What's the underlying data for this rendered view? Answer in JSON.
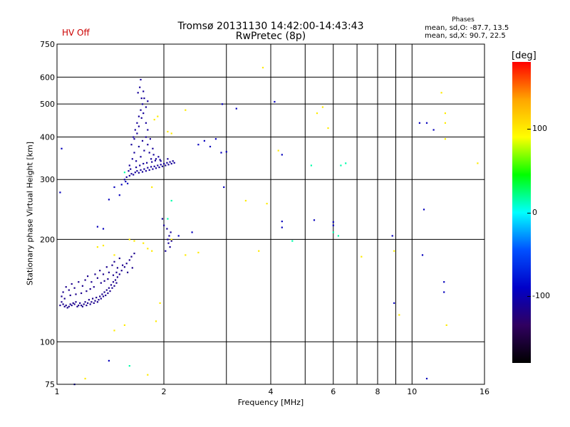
{
  "chart_data": {
    "type": "scatter",
    "title": "Tromsø 20131130 14:42:00-14:43:43",
    "subtitle": "RwPretec (8p)",
    "status_label": "HV Off",
    "xlabel": "Frequency [MHz]",
    "ylabel": "Stationary phase Virtual Height [km]",
    "x_scale": "log",
    "y_scale": "log",
    "xlim": [
      1,
      16
    ],
    "ylim": [
      75,
      750
    ],
    "x_ticks": [
      1,
      2,
      4,
      6,
      8,
      10,
      16
    ],
    "x_tick_labels": [
      "1",
      "2",
      "4",
      "6",
      "8",
      "10",
      "16"
    ],
    "x_minor_ticks": [
      3,
      5,
      7,
      9
    ],
    "y_ticks": [
      75,
      100,
      200,
      300,
      400,
      500,
      600,
      750
    ],
    "y_tick_labels": [
      "75",
      "100",
      "200",
      "300",
      "400",
      "500",
      "600",
      "750"
    ],
    "grid": true,
    "phases_legend": {
      "title": "Phases",
      "line_o": "mean, sd,O: -87.7, 13.5",
      "line_x": "mean, sd,X:  90.7, 22.5"
    },
    "colorbar": {
      "label": "[deg]",
      "range": [
        -180,
        180
      ],
      "ticks": [
        100,
        0,
        -100
      ],
      "tick_labels": [
        "100",
        "0",
        "-100"
      ],
      "colors": [
        "#ff0000",
        "#ffa500",
        "#ffff00",
        "#00ff00",
        "#00ffff",
        "#0050ff",
        "#0000c8",
        "#300060",
        "#000000"
      ]
    },
    "series": [
      {
        "values": [
          [
            1.02,
            128
          ],
          [
            1.03,
            131
          ],
          [
            1.04,
            129
          ],
          [
            1.05,
            127
          ],
          [
            1.06,
            128
          ],
          [
            1.07,
            126
          ],
          [
            1.08,
            127
          ],
          [
            1.09,
            129
          ],
          [
            1.1,
            128
          ],
          [
            1.11,
            130
          ],
          [
            1.12,
            129
          ],
          [
            1.13,
            131
          ],
          [
            1.14,
            127
          ],
          [
            1.15,
            128
          ],
          [
            1.16,
            130
          ],
          [
            1.17,
            128
          ],
          [
            1.18,
            127
          ],
          [
            1.19,
            129
          ],
          [
            1.2,
            131
          ],
          [
            1.21,
            128
          ],
          [
            1.22,
            130
          ],
          [
            1.23,
            133
          ],
          [
            1.24,
            129
          ],
          [
            1.25,
            131
          ],
          [
            1.26,
            134
          ],
          [
            1.27,
            130
          ],
          [
            1.28,
            132
          ],
          [
            1.29,
            135
          ],
          [
            1.3,
            131
          ],
          [
            1.31,
            133
          ],
          [
            1.32,
            136
          ],
          [
            1.33,
            134
          ],
          [
            1.34,
            138
          ],
          [
            1.35,
            136
          ],
          [
            1.36,
            140
          ],
          [
            1.37,
            137
          ],
          [
            1.38,
            142
          ],
          [
            1.39,
            139
          ],
          [
            1.4,
            144
          ],
          [
            1.41,
            141
          ],
          [
            1.42,
            147
          ],
          [
            1.43,
            144
          ],
          [
            1.44,
            150
          ],
          [
            1.45,
            146
          ],
          [
            1.46,
            152
          ],
          [
            1.47,
            149
          ],
          [
            1.48,
            155
          ],
          [
            1.5,
            158
          ],
          [
            1.52,
            162
          ],
          [
            1.55,
            166
          ],
          [
            1.57,
            170
          ],
          [
            1.6,
            174
          ],
          [
            1.62,
            178
          ],
          [
            1.65,
            182
          ],
          [
            1.04,
            140
          ],
          [
            1.06,
            145
          ],
          [
            1.08,
            142
          ],
          [
            1.1,
            148
          ],
          [
            1.12,
            144
          ],
          [
            1.15,
            150
          ],
          [
            1.18,
            146
          ],
          [
            1.2,
            152
          ],
          [
            1.22,
            156
          ],
          [
            1.25,
            150
          ],
          [
            1.28,
            158
          ],
          [
            1.3,
            154
          ],
          [
            1.32,
            162
          ],
          [
            1.35,
            158
          ],
          [
            1.38,
            166
          ],
          [
            1.4,
            160
          ],
          [
            1.43,
            168
          ],
          [
            1.45,
            172
          ],
          [
            1.48,
            165
          ],
          [
            1.5,
            176
          ],
          [
            1.03,
            136
          ],
          [
            1.05,
            134
          ],
          [
            1.09,
            137
          ],
          [
            1.13,
            138
          ],
          [
            1.17,
            139
          ],
          [
            1.21,
            141
          ],
          [
            1.24,
            143
          ],
          [
            1.27,
            145
          ],
          [
            1.33,
            149
          ],
          [
            1.36,
            151
          ],
          [
            1.39,
            153
          ],
          [
            1.44,
            157
          ],
          [
            1.47,
            160
          ],
          [
            1.53,
            168
          ],
          [
            1.58,
            160
          ],
          [
            1.63,
            165
          ]
        ]
      },
      {
        "values": [
          [
            1.55,
            300
          ],
          [
            1.57,
            305
          ],
          [
            1.6,
            308
          ],
          [
            1.62,
            312
          ],
          [
            1.64,
            310
          ],
          [
            1.66,
            315
          ],
          [
            1.68,
            318
          ],
          [
            1.7,
            314
          ],
          [
            1.72,
            320
          ],
          [
            1.74,
            316
          ],
          [
            1.76,
            322
          ],
          [
            1.78,
            318
          ],
          [
            1.8,
            325
          ],
          [
            1.82,
            320
          ],
          [
            1.84,
            327
          ],
          [
            1.86,
            322
          ],
          [
            1.88,
            328
          ],
          [
            1.9,
            324
          ],
          [
            1.92,
            330
          ],
          [
            1.94,
            326
          ],
          [
            1.96,
            332
          ],
          [
            1.98,
            328
          ],
          [
            2.0,
            334
          ],
          [
            2.02,
            330
          ],
          [
            2.04,
            336
          ],
          [
            2.06,
            332
          ],
          [
            2.08,
            338
          ],
          [
            2.1,
            334
          ],
          [
            2.12,
            340
          ],
          [
            2.14,
            336
          ],
          [
            1.6,
            330
          ],
          [
            1.63,
            345
          ],
          [
            1.65,
            360
          ],
          [
            1.67,
            340
          ],
          [
            1.7,
            375
          ],
          [
            1.72,
            350
          ],
          [
            1.74,
            390
          ],
          [
            1.76,
            365
          ],
          [
            1.78,
            400
          ],
          [
            1.8,
            380
          ],
          [
            1.62,
            380
          ],
          [
            1.64,
            400
          ],
          [
            1.66,
            420
          ],
          [
            1.68,
            440
          ],
          [
            1.7,
            460
          ],
          [
            1.72,
            480
          ],
          [
            1.74,
            500
          ],
          [
            1.76,
            520
          ],
          [
            1.78,
            440
          ],
          [
            1.8,
            420
          ],
          [
            1.65,
            395
          ],
          [
            1.68,
            410
          ],
          [
            1.7,
            430
          ],
          [
            1.73,
            455
          ],
          [
            1.75,
            470
          ],
          [
            1.78,
            490
          ],
          [
            1.8,
            510
          ],
          [
            1.82,
            360
          ],
          [
            1.84,
            345
          ],
          [
            1.86,
            370
          ],
          [
            1.69,
            540
          ],
          [
            1.71,
            560
          ],
          [
            1.72,
            590
          ],
          [
            1.73,
            520
          ],
          [
            1.75,
            545
          ],
          [
            1.83,
            395
          ],
          [
            1.87,
            355
          ],
          [
            1.9,
            345
          ],
          [
            1.93,
            350
          ],
          [
            1.96,
            340
          ],
          [
            1.59,
            318
          ],
          [
            1.61,
            322
          ],
          [
            1.67,
            326
          ],
          [
            1.71,
            330
          ],
          [
            1.75,
            334
          ],
          [
            1.79,
            336
          ],
          [
            1.85,
            338
          ],
          [
            1.89,
            341
          ],
          [
            1.95,
            343
          ],
          [
            2.05,
            345
          ],
          [
            2.05,
            200
          ],
          [
            2.06,
            195
          ],
          [
            2.07,
            205
          ],
          [
            2.08,
            190
          ],
          [
            2.09,
            210
          ],
          [
            2.1,
            198
          ],
          [
            2.04,
            215
          ],
          [
            2.02,
            185
          ],
          [
            1.98,
            230
          ],
          [
            2.0,
            220
          ]
        ]
      },
      {
        "values": [
          [
            1.03,
            370
          ],
          [
            1.02,
            275
          ],
          [
            1.5,
            270
          ],
          [
            1.52,
            290
          ],
          [
            1.45,
            285
          ],
          [
            1.4,
            262
          ],
          [
            1.35,
            215
          ],
          [
            1.3,
            218
          ],
          [
            1.58,
            292
          ],
          [
            1.56,
            296
          ],
          [
            2.5,
            380
          ],
          [
            2.6,
            390
          ],
          [
            2.7,
            375
          ],
          [
            2.8,
            395
          ],
          [
            2.9,
            360
          ],
          [
            3.0,
            362
          ],
          [
            2.95,
            285
          ],
          [
            2.92,
            500
          ],
          [
            3.2,
            485
          ],
          [
            4.1,
            508
          ],
          [
            4.3,
            355
          ],
          [
            4.3,
            226
          ],
          [
            4.3,
            217
          ],
          [
            5.3,
            228
          ],
          [
            6.0,
            220
          ],
          [
            6.0,
            225
          ],
          [
            10.5,
            440
          ],
          [
            11.0,
            440
          ],
          [
            10.8,
            245
          ],
          [
            11.5,
            420
          ],
          [
            12.3,
            150
          ],
          [
            12.3,
            140
          ],
          [
            8.8,
            205
          ],
          [
            10.7,
            180
          ],
          [
            11.0,
            78
          ],
          [
            8.9,
            130
          ],
          [
            1.4,
            88
          ],
          [
            1.12,
            75
          ],
          [
            2.2,
            205
          ],
          [
            2.4,
            210
          ]
        ]
      },
      {
        "values": [
          [
            1.3,
            190
          ],
          [
            1.35,
            192
          ],
          [
            1.45,
            180
          ],
          [
            1.6,
            200
          ],
          [
            1.65,
            198
          ],
          [
            1.75,
            195
          ],
          [
            1.8,
            188
          ],
          [
            1.85,
            185
          ],
          [
            2.3,
            180
          ],
          [
            2.5,
            183
          ],
          [
            3.7,
            185
          ],
          [
            3.8,
            640
          ],
          [
            3.4,
            260
          ],
          [
            3.9,
            255
          ],
          [
            5.6,
            490
          ],
          [
            5.8,
            425
          ],
          [
            7.2,
            178
          ],
          [
            8.9,
            185
          ],
          [
            9.2,
            120
          ],
          [
            12.1,
            540
          ],
          [
            12.4,
            470
          ],
          [
            12.4,
            440
          ],
          [
            12.4,
            395
          ],
          [
            12.5,
            112
          ],
          [
            15.3,
            335
          ],
          [
            1.85,
            285
          ],
          [
            1.9,
            115
          ],
          [
            1.55,
            112
          ],
          [
            2.1,
            200
          ],
          [
            1.45,
            108
          ],
          [
            1.88,
            450
          ],
          [
            1.92,
            460
          ],
          [
            2.05,
            415
          ],
          [
            2.1,
            410
          ],
          [
            4.2,
            365
          ],
          [
            2.3,
            480
          ],
          [
            5.4,
            470
          ],
          [
            1.8,
            80
          ],
          [
            1.2,
            78
          ],
          [
            1.95,
            130
          ]
        ]
      },
      {
        "values": [
          [
            4.6,
            198
          ],
          [
            6.0,
            210
          ],
          [
            6.2,
            205
          ],
          [
            5.2,
            330
          ],
          [
            6.3,
            330
          ],
          [
            6.5,
            335
          ],
          [
            1.55,
            315
          ],
          [
            1.6,
            85
          ],
          [
            2.1,
            260
          ],
          [
            2.05,
            230
          ]
        ]
      }
    ]
  }
}
